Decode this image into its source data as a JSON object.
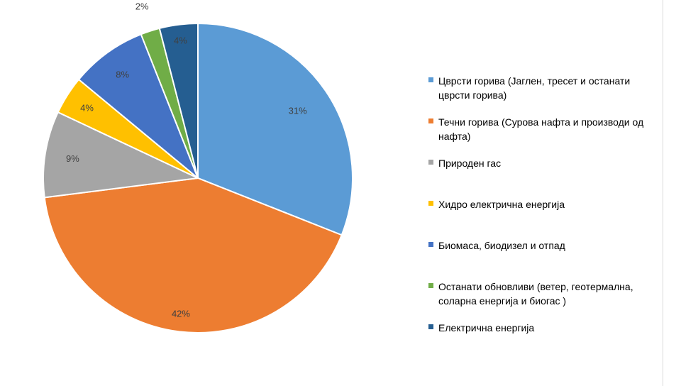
{
  "chart_data": {
    "type": "pie",
    "title": "",
    "slices": [
      {
        "label": "Цврсти горива (Јаглен, тресет и останати цврсти горива)",
        "value": 31,
        "display": "31%",
        "color": "#5B9BD5"
      },
      {
        "label": "Течни горива (Сурова нафта и производи од нафта)",
        "value": 42,
        "display": "42%",
        "color": "#ED7D31"
      },
      {
        "label": "Природен гас",
        "value": 9,
        "display": "9%",
        "color": "#A5A5A5"
      },
      {
        "label": "Хидро електрична енергија",
        "value": 4,
        "display": "4%",
        "color": "#FFC000"
      },
      {
        "label": "Биомаса, биодизел и отпад",
        "value": 8,
        "display": "8%",
        "color": "#4472C4"
      },
      {
        "label": "Останати обновливи (ветер, геотермална, соларна енергија и биогас )",
        "value": 2,
        "display": "2%",
        "color": "#70AD47"
      },
      {
        "label": "Електрична енергија",
        "value": 4,
        "display": "4%",
        "color": "#255E91"
      }
    ],
    "legend_position": "right"
  }
}
